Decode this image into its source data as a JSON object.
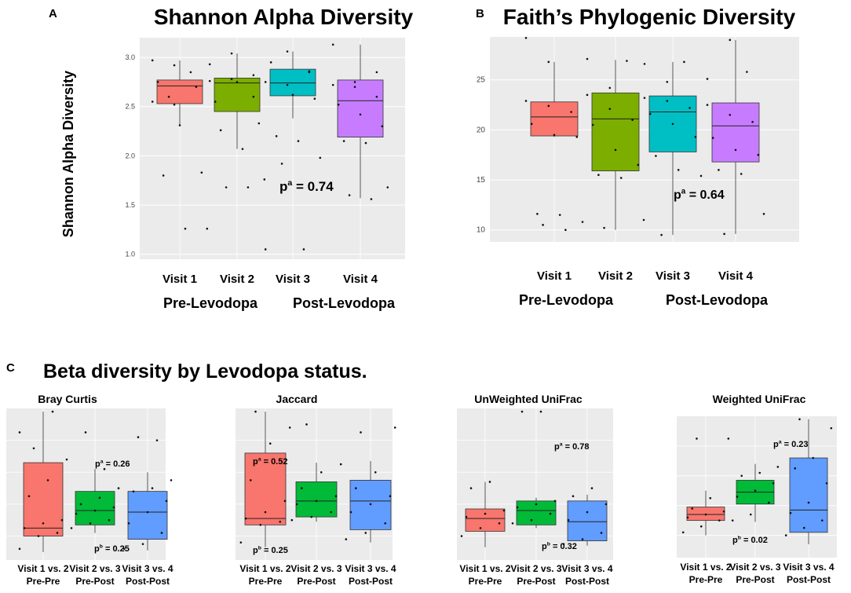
{
  "panel_labels": {
    "a": "A",
    "b": "B",
    "c": "C"
  },
  "group_labels": {
    "pre": "Pre-Levodopa",
    "post": "Post-Levodopa"
  },
  "beta_title": "Beta diversity by Levodopa status.",
  "colors": {
    "visit1": "#f8766d",
    "visit2": "#7cae00",
    "visit3": "#00bfc4",
    "visit4": "#c77cff",
    "c_pre": "#f8766d",
    "c_mid": "#00ba38",
    "c_post": "#619cff",
    "plot_bg": "#ebebeb",
    "grid": "#ffffff"
  },
  "chart_data": [
    {
      "id": "shannon",
      "type": "box",
      "title": "Shannon Alpha Diversity",
      "ylabel": "Shannon Alpha Diversity",
      "ylim": [
        0.95,
        3.2
      ],
      "yticks": [
        "1.0",
        "1.5",
        "2.0",
        "2.5",
        "3.0"
      ],
      "ytick_values": [
        1.0,
        1.5,
        2.0,
        2.5,
        3.0
      ],
      "categories": [
        "Visit 1",
        "Visit 2",
        "Visit 3",
        "Visit 4"
      ],
      "boxes": [
        {
          "name": "Visit 1",
          "min": 2.31,
          "q1": 2.53,
          "median": 2.71,
          "q3": 2.77,
          "max": 2.97
        },
        {
          "name": "Visit 2",
          "min": 2.07,
          "q1": 2.45,
          "median": 2.74,
          "q3": 2.79,
          "max": 3.04
        },
        {
          "name": "Visit 3",
          "min": 2.38,
          "q1": 2.61,
          "median": 2.74,
          "q3": 2.88,
          "max": 3.06
        },
        {
          "name": "Visit 4",
          "min": 1.57,
          "q1": 2.19,
          "median": 2.56,
          "q3": 2.77,
          "max": 3.13
        }
      ],
      "points": [
        [
          2.55,
          2.52,
          2.7,
          2.75,
          2.31,
          1.83,
          1.8,
          1.26,
          1.26,
          2.6,
          2.85,
          2.97,
          2.92
        ],
        [
          2.76,
          2.78,
          2.6,
          2.55,
          2.75,
          2.33,
          2.26,
          2.07,
          1.76,
          1.68,
          1.68,
          2.93,
          3.04,
          2.82
        ],
        [
          2.75,
          2.72,
          2.85,
          2.95,
          2.62,
          2.58,
          2.2,
          2.15,
          1.98,
          1.92,
          1.05,
          1.05,
          3.06,
          2.86
        ],
        [
          2.72,
          2.7,
          2.6,
          2.52,
          2.42,
          2.3,
          2.15,
          2.13,
          1.68,
          1.6,
          1.56,
          3.13,
          2.75,
          2.85
        ]
      ],
      "annotation": "p",
      "annotation_sup": "a",
      "annotation_rest": " = 0.74"
    },
    {
      "id": "faith",
      "type": "box",
      "title": "Faith’s Phylogenic Diversity",
      "ylim": [
        8.8,
        29.3
      ],
      "yticks": [
        "10",
        "15",
        "20",
        "25"
      ],
      "ytick_values": [
        10,
        15,
        20,
        25
      ],
      "categories": [
        "Visit 1",
        "Visit 2",
        "Visit 3",
        "Visit 4"
      ],
      "boxes": [
        {
          "name": "Visit 1",
          "min": 19.3,
          "q1": 19.4,
          "median": 21.3,
          "q3": 22.8,
          "max": 26.8
        },
        {
          "name": "Visit 2",
          "min": 10.0,
          "q1": 15.9,
          "median": 21.1,
          "q3": 23.7,
          "max": 27.0
        },
        {
          "name": "Visit 3",
          "min": 9.5,
          "q1": 17.8,
          "median": 21.8,
          "q3": 23.4,
          "max": 26.8
        },
        {
          "name": "Visit 4",
          "min": 9.6,
          "q1": 16.8,
          "median": 20.4,
          "q3": 22.7,
          "max": 29.0
        }
      ],
      "points": [
        [
          22.9,
          22.4,
          21.8,
          20.6,
          19.5,
          19.3,
          11.6,
          11.5,
          10.8,
          10.5,
          10.0,
          29.2,
          26.8
        ],
        [
          23.5,
          22.1,
          21.0,
          20.5,
          18.0,
          16.5,
          15.5,
          15.2,
          11.0,
          10.2,
          26.9,
          27.1,
          24.2
        ],
        [
          23.2,
          22.9,
          22.2,
          21.6,
          20.6,
          19.3,
          17.4,
          16.0,
          15.4,
          9.5,
          26.8,
          26.6,
          24.8
        ],
        [
          22.5,
          21.5,
          20.8,
          19.2,
          18.0,
          17.5,
          16.0,
          15.6,
          11.6,
          9.6,
          25.8,
          25.1,
          29.0
        ]
      ],
      "annotation": "p",
      "annotation_sup": "a",
      "annotation_rest": " = 0.64"
    },
    {
      "id": "bray",
      "type": "box",
      "title": "Bray Curtis",
      "ylim": [
        0.05,
        1.0
      ],
      "categories": [
        "Visit 1 vs. 2",
        "Visit 2 vs. 3",
        "Visit 3 vs. 4"
      ],
      "subcategories": [
        "Pre-Pre",
        "Pre-Post",
        "Post-Post"
      ],
      "boxes": [
        {
          "min": 0.1,
          "q1": 0.2,
          "median": 0.25,
          "q3": 0.66,
          "max": 0.98
        },
        {
          "min": 0.22,
          "q1": 0.27,
          "median": 0.36,
          "q3": 0.48,
          "max": 0.62
        },
        {
          "min": 0.11,
          "q1": 0.18,
          "median": 0.35,
          "q3": 0.48,
          "max": 0.6
        }
      ],
      "points": [
        [
          0.12,
          0.2,
          0.22,
          0.25,
          0.28,
          0.3,
          0.45,
          0.55,
          0.68,
          0.75,
          0.98,
          0.85
        ],
        [
          0.25,
          0.28,
          0.3,
          0.34,
          0.36,
          0.38,
          0.4,
          0.44,
          0.5,
          0.85,
          0.62
        ],
        [
          0.12,
          0.15,
          0.22,
          0.28,
          0.35,
          0.42,
          0.48,
          0.5,
          0.55,
          0.82,
          0.8
        ]
      ],
      "annotations": [
        {
          "p": "p",
          "sup": "a",
          "text": " = 0.26"
        },
        {
          "p": "p",
          "sup": "b",
          "text": " = 0.25"
        }
      ]
    },
    {
      "id": "jaccard",
      "type": "box",
      "title": "Jaccard",
      "ylim": [
        0.05,
        1.0
      ],
      "categories": [
        "Visit 1 vs. 2",
        "Visit 2 vs. 3",
        "Visit 3 vs. 4"
      ],
      "subcategories": [
        "Pre-Pre",
        "Pre-Post",
        "Post-Post"
      ],
      "boxes": [
        {
          "min": 0.13,
          "q1": 0.27,
          "median": 0.31,
          "q3": 0.72,
          "max": 0.98
        },
        {
          "min": 0.29,
          "q1": 0.32,
          "median": 0.42,
          "q3": 0.54,
          "max": 0.66
        },
        {
          "min": 0.16,
          "q1": 0.24,
          "median": 0.42,
          "q3": 0.55,
          "max": 0.67
        }
      ],
      "points": [
        [
          0.16,
          0.27,
          0.29,
          0.31,
          0.35,
          0.42,
          0.55,
          0.78,
          0.88,
          0.98
        ],
        [
          0.3,
          0.32,
          0.35,
          0.4,
          0.42,
          0.45,
          0.5,
          0.6,
          0.65,
          0.9
        ],
        [
          0.18,
          0.22,
          0.28,
          0.35,
          0.4,
          0.45,
          0.5,
          0.6,
          0.88,
          0.85
        ]
      ],
      "annotations": [
        {
          "p": "p",
          "sup": "a",
          "text": " = 0.52"
        },
        {
          "p": "p",
          "sup": "b",
          "text": " = 0.25"
        }
      ]
    },
    {
      "id": "unifrac_unw",
      "type": "box",
      "title": "UnWeighted UniFrac",
      "ylim": [
        0.05,
        1.0
      ],
      "categories": [
        "Visit 1 vs. 2",
        "Visit 2 vs. 3",
        "Visit 3 vs. 4"
      ],
      "subcategories": [
        "Pre-Pre",
        "Pre-Post",
        "Post-Post"
      ],
      "boxes": [
        {
          "min": 0.13,
          "q1": 0.23,
          "median": 0.31,
          "q3": 0.37,
          "max": 0.54
        },
        {
          "min": 0.25,
          "q1": 0.27,
          "median": 0.36,
          "q3": 0.42,
          "max": 0.44
        },
        {
          "min": 0.14,
          "q1": 0.17,
          "median": 0.29,
          "q3": 0.42,
          "max": 0.46
        }
      ],
      "points": [
        [
          0.2,
          0.25,
          0.28,
          0.32,
          0.34,
          0.36,
          0.5,
          0.54
        ],
        [
          0.28,
          0.3,
          0.34,
          0.38,
          0.4,
          0.42,
          0.98,
          0.98
        ],
        [
          0.15,
          0.18,
          0.22,
          0.3,
          0.35,
          0.4,
          0.45,
          0.5
        ]
      ],
      "annotations": [
        {
          "p": "p",
          "sup": "a",
          "text": " = 0.78"
        },
        {
          "p": "p",
          "sup": "b",
          "text": " = 0.32"
        }
      ]
    },
    {
      "id": "unifrac_w",
      "type": "box",
      "title": "Weighted UniFrac",
      "ylim": [
        0.05,
        1.0
      ],
      "categories": [
        "Visit 1 vs. 2",
        "Visit 2 vs. 3",
        "Visit 3 vs. 4"
      ],
      "subcategories": [
        "Pre-Pre",
        "Pre-Post",
        "Post-Post"
      ],
      "boxes": [
        {
          "min": 0.2,
          "q1": 0.3,
          "median": 0.34,
          "q3": 0.39,
          "max": 0.5
        },
        {
          "min": 0.29,
          "q1": 0.41,
          "median": 0.49,
          "q3": 0.57,
          "max": 0.68
        },
        {
          "min": 0.14,
          "q1": 0.22,
          "median": 0.37,
          "q3": 0.72,
          "max": 0.98
        }
      ],
      "points": [
        [
          0.22,
          0.26,
          0.3,
          0.32,
          0.34,
          0.36,
          0.38,
          0.45,
          0.85,
          0.85
        ],
        [
          0.3,
          0.34,
          0.42,
          0.46,
          0.5,
          0.55,
          0.6,
          0.62,
          0.66
        ],
        [
          0.2,
          0.25,
          0.3,
          0.35,
          0.42,
          0.55,
          0.65,
          0.72,
          0.92,
          0.98
        ]
      ],
      "annotations": [
        {
          "p": "p",
          "sup": "a",
          "text": " = 0.23"
        },
        {
          "p": "p",
          "sup": "b",
          "text": " = 0.02"
        }
      ]
    }
  ]
}
